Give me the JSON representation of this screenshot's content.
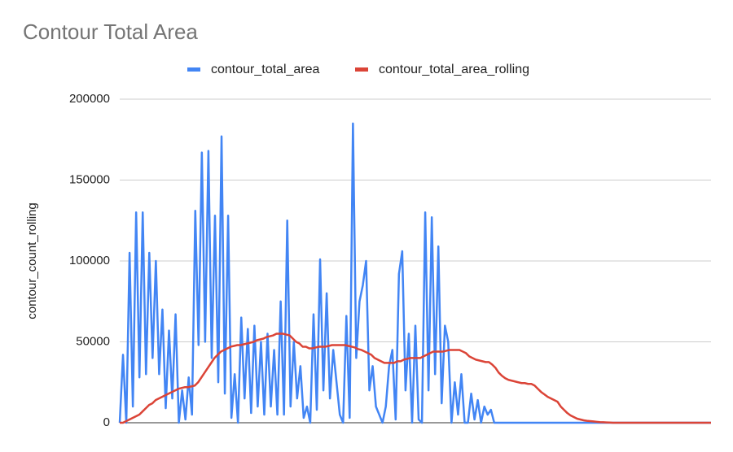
{
  "chart_data": {
    "type": "line",
    "title": "Contour Total Area",
    "y_label": "contour_count_rolling",
    "ylim": [
      0,
      200000
    ],
    "yticks": [
      0,
      50000,
      100000,
      150000,
      200000
    ],
    "grid": true,
    "legend": "top",
    "series": [
      {
        "name": "contour_total_area",
        "color": "#4285f4",
        "values": [
          0,
          42000,
          0,
          105000,
          10000,
          130000,
          28000,
          130000,
          30000,
          105000,
          40000,
          100000,
          30000,
          70000,
          9000,
          57000,
          15000,
          67000,
          0,
          20000,
          2000,
          28000,
          5000,
          131000,
          48000,
          167000,
          50000,
          168000,
          40000,
          128000,
          25000,
          177000,
          18000,
          128000,
          3000,
          30000,
          0,
          65000,
          15000,
          58000,
          6000,
          60000,
          10000,
          50000,
          5000,
          55000,
          10000,
          45000,
          5000,
          75000,
          5000,
          125000,
          10000,
          50000,
          15000,
          35000,
          3000,
          10000,
          0,
          67000,
          8000,
          101000,
          20000,
          80000,
          15000,
          45000,
          25000,
          5000,
          0,
          66000,
          3000,
          185000,
          40000,
          75000,
          85000,
          100000,
          20000,
          35000,
          10000,
          5000,
          0,
          10000,
          35000,
          45000,
          2000,
          92000,
          106000,
          20000,
          55000,
          0,
          60000,
          2000,
          0,
          130000,
          20000,
          127000,
          30000,
          109000,
          12000,
          60000,
          50000,
          0,
          25000,
          5000,
          30000,
          0,
          0,
          18000,
          2000,
          14000,
          0,
          10000,
          5000,
          8000,
          0,
          0,
          0,
          0,
          0,
          0,
          0,
          0,
          0,
          0,
          0,
          0,
          0,
          0,
          0,
          0,
          0,
          0,
          0,
          0,
          0,
          0,
          0,
          0,
          0,
          0,
          0,
          0,
          0,
          0,
          0,
          0,
          0,
          0,
          0,
          0,
          0,
          0,
          0,
          0,
          0,
          0,
          0,
          0,
          0,
          0,
          0,
          0,
          0,
          0,
          0,
          0,
          0,
          0,
          0,
          0,
          0,
          0,
          0,
          0,
          0,
          0,
          0,
          0,
          0,
          0,
          0
        ]
      },
      {
        "name": "contour_total_area_rolling",
        "color": "#db4437",
        "values": [
          0,
          0,
          1000,
          2000,
          3000,
          4000,
          5000,
          7000,
          9000,
          11000,
          12000,
          14000,
          15000,
          16000,
          17000,
          18000,
          19000,
          20000,
          21000,
          21500,
          22000,
          22000,
          22500,
          23000,
          25000,
          28000,
          31000,
          34000,
          37000,
          40000,
          42000,
          44000,
          45000,
          46000,
          47000,
          47500,
          48000,
          48000,
          48500,
          49000,
          49500,
          50000,
          51000,
          51500,
          52000,
          53000,
          53500,
          54000,
          55000,
          55000,
          55000,
          54500,
          54000,
          52000,
          50000,
          49000,
          47000,
          47000,
          46000,
          46000,
          46500,
          47000,
          47000,
          47000,
          47500,
          48000,
          48000,
          48000,
          48000,
          48000,
          47500,
          47000,
          46500,
          45500,
          45000,
          44000,
          43000,
          42000,
          40000,
          39000,
          38000,
          37000,
          37000,
          37000,
          37000,
          38000,
          38000,
          39000,
          39500,
          40000,
          40000,
          40000,
          40000,
          41000,
          42000,
          43000,
          44000,
          44000,
          44000,
          44000,
          44500,
          45000,
          45000,
          45000,
          45000,
          44000,
          43000,
          41000,
          40000,
          39000,
          38500,
          38000,
          37500,
          37500,
          36000,
          34000,
          31000,
          29000,
          27500,
          26500,
          26000,
          25500,
          25000,
          24500,
          24500,
          24000,
          24000,
          23000,
          21000,
          19000,
          17500,
          16000,
          15000,
          14000,
          13000,
          10000,
          8000,
          6000,
          4500,
          3500,
          2500,
          2000,
          1500,
          1200,
          1000,
          800,
          600,
          400,
          300,
          200,
          100,
          0,
          0,
          0,
          0,
          0,
          0,
          0,
          0,
          0,
          0,
          0,
          0,
          0,
          0,
          0,
          0,
          0,
          0,
          0,
          0,
          0,
          0,
          0,
          0,
          0,
          0,
          0,
          0,
          0,
          0,
          0
        ]
      }
    ]
  }
}
